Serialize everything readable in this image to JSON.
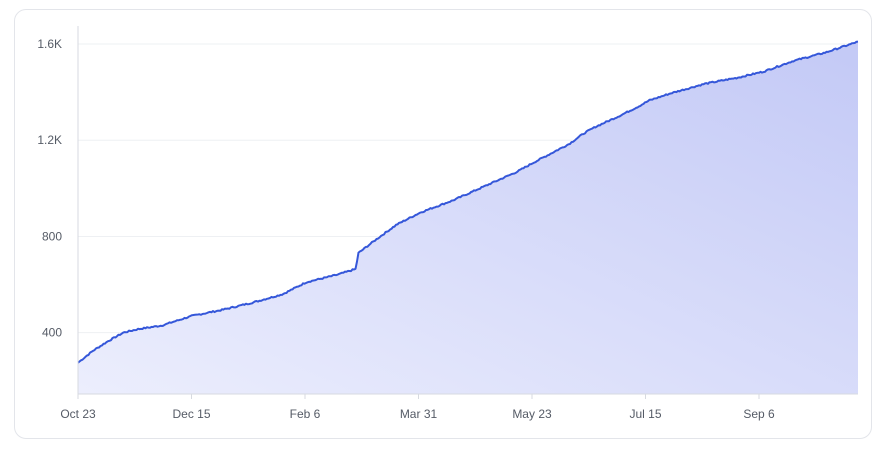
{
  "chart_data": {
    "type": "area",
    "title": "",
    "xlabel": "",
    "ylabel": "",
    "x_ticks": [
      "Oct 23",
      "Dec 15",
      "Feb 6",
      "Mar 31",
      "May 23",
      "Jul 15",
      "Sep 6"
    ],
    "y_ticks": [
      "400",
      "800",
      "1.2K",
      "1.6K"
    ],
    "y_tick_values": [
      400,
      800,
      1200,
      1600
    ],
    "ylim": [
      145,
      1675
    ],
    "x_start": "2022-10-23",
    "x_end": "2023-10-20",
    "grid": true,
    "legend": "none",
    "colors": {
      "line": "#3557d9",
      "fill_top": "#c3c9f6",
      "fill_bottom": "#eceefd",
      "grid": "#eef0f3",
      "axis": "#d7dae0"
    },
    "series": [
      {
        "x": [
          "2022-10-23",
          "2022-10-30",
          "2022-11-06",
          "2022-11-13",
          "2022-11-20",
          "2022-12-01",
          "2022-12-15",
          "2022-12-29",
          "2023-01-12",
          "2023-01-26",
          "2023-02-06",
          "2023-02-20",
          "2023-03-01",
          "2023-03-02",
          "2023-03-10",
          "2023-03-20",
          "2023-03-31",
          "2023-04-15",
          "2023-04-30",
          "2023-05-15",
          "2023-05-23",
          "2023-06-08",
          "2023-06-15",
          "2023-06-20",
          "2023-07-01",
          "2023-07-10",
          "2023-07-15",
          "2023-07-25",
          "2023-08-10",
          "2023-08-25",
          "2023-09-06",
          "2023-09-20",
          "2023-10-05",
          "2023-10-20"
        ],
        "values": [
          275,
          325,
          365,
          400,
          415,
          430,
          470,
          495,
          525,
          560,
          610,
          640,
          665,
          730,
          785,
          850,
          900,
          950,
          1010,
          1070,
          1110,
          1185,
          1230,
          1255,
          1300,
          1340,
          1365,
          1395,
          1435,
          1460,
          1485,
          1530,
          1565,
          1610
        ]
      }
    ]
  }
}
